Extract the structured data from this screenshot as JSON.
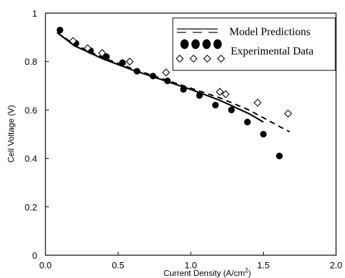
{
  "chart_data": {
    "type": "scatter",
    "title": "",
    "xlabel": "Current Density (A/cm",
    "xlabel_sup": "2",
    "xlabel_close": ")",
    "ylabel": "Cell Voltage (V)",
    "xlim": [
      0.0,
      2.0
    ],
    "ylim": [
      0.0,
      1.0
    ],
    "xticks": [
      "0.0",
      "0.5",
      "1.0",
      "1.5",
      "2.0"
    ],
    "yticks": [
      "0",
      "0.2",
      "0.4",
      "0.6",
      "0.8",
      "1"
    ],
    "grid": false,
    "legend_position": "top-right",
    "legend": [
      {
        "label": "Model Predictions",
        "style": "dashed-lines"
      },
      {
        "label": "Experimental Data",
        "style": "filled-and-open-markers"
      }
    ],
    "series": [
      {
        "kind": "line",
        "style": "solid",
        "color": "#000000",
        "x": [
          0.08,
          0.2,
          0.4,
          0.6,
          0.8,
          1.0,
          1.2,
          1.4,
          1.5
        ],
        "y": [
          0.92,
          0.865,
          0.81,
          0.765,
          0.725,
          0.685,
          0.64,
          0.585,
          0.55
        ]
      },
      {
        "kind": "line",
        "style": "dashed",
        "color": "#000000",
        "x": [
          0.08,
          0.2,
          0.4,
          0.6,
          0.8,
          1.0,
          1.2,
          1.4,
          1.6,
          1.68
        ],
        "y": [
          0.92,
          0.87,
          0.815,
          0.77,
          0.73,
          0.69,
          0.65,
          0.6,
          0.535,
          0.51
        ]
      },
      {
        "kind": "points",
        "marker": "filled-circle",
        "color": "#000000",
        "x": [
          0.1,
          0.21,
          0.31,
          0.42,
          0.53,
          0.63,
          0.74,
          0.84,
          0.95,
          1.06,
          1.17,
          1.28,
          1.39,
          1.5,
          1.61
        ],
        "y": [
          0.93,
          0.875,
          0.845,
          0.82,
          0.795,
          0.76,
          0.74,
          0.72,
          0.685,
          0.66,
          0.62,
          0.6,
          0.55,
          0.5,
          0.41
        ]
      },
      {
        "kind": "points",
        "marker": "open-diamond",
        "color": "#000000",
        "x": [
          0.19,
          0.29,
          0.39,
          0.58,
          0.83,
          1.2,
          1.24,
          1.46,
          1.67
        ],
        "y": [
          0.885,
          0.855,
          0.835,
          0.8,
          0.755,
          0.675,
          0.665,
          0.63,
          0.585
        ]
      }
    ]
  }
}
